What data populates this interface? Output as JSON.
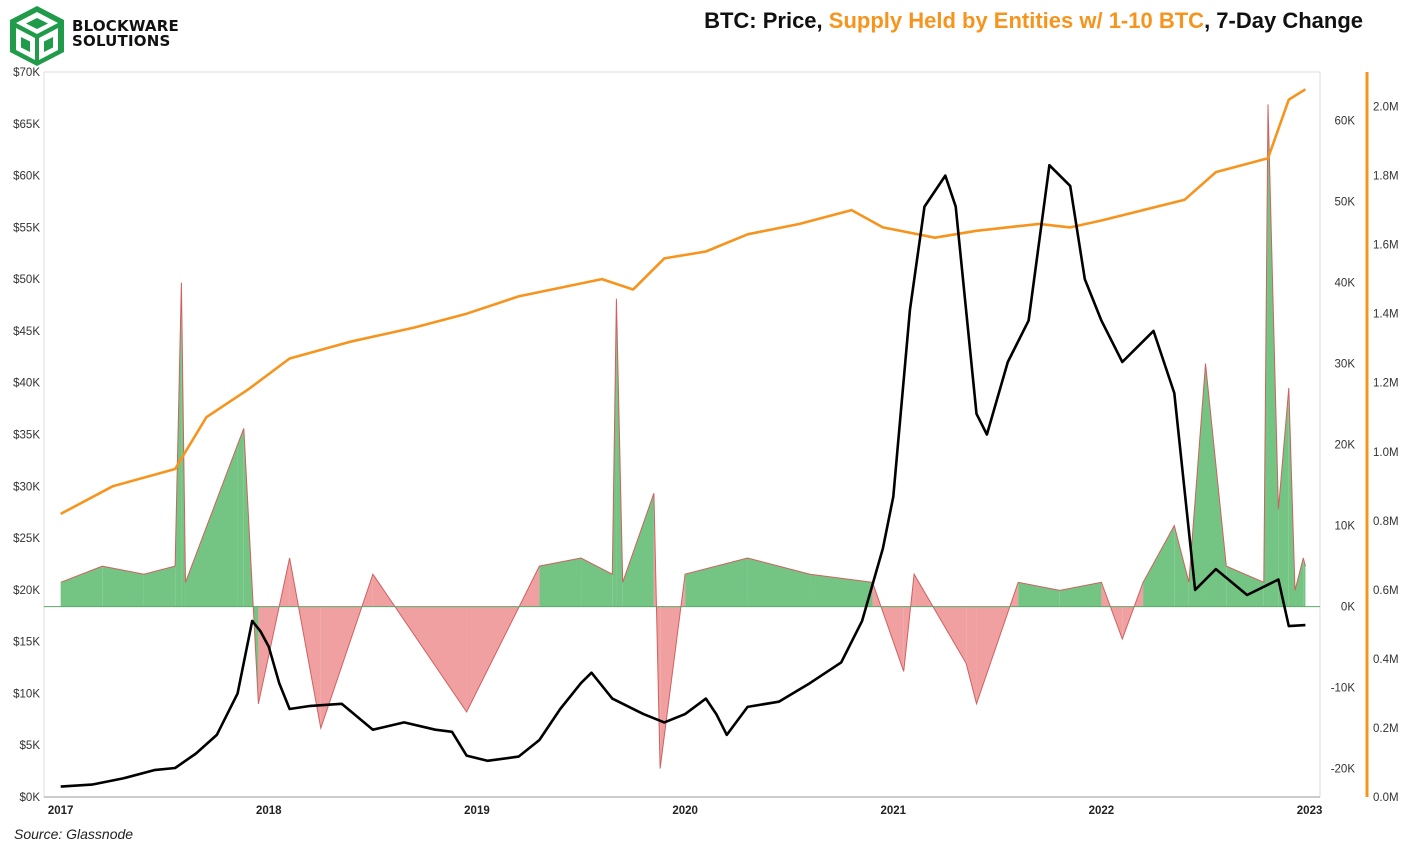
{
  "brand": {
    "line1": "BLOCKWARE",
    "line2": "SOLUTIONS"
  },
  "title": {
    "part1": "BTC: Price, ",
    "part2": "Supply Held by Entities w/ 1-10 BTC",
    "part3": ", 7-Day Change"
  },
  "source": "Source: Glassnode",
  "colors": {
    "price": "#000000",
    "supply": "#f7941d",
    "change_pos_fill": "#74c584",
    "change_neg_fill": "#f0a0a0",
    "change_line": "#d06060"
  },
  "chart_data": {
    "type": "line",
    "x_ticks": [
      "2017",
      "2018",
      "2019",
      "2020",
      "2021",
      "2022",
      "2023"
    ],
    "y_left_ticks": [
      "$0K",
      "$5K",
      "$10K",
      "$15K",
      "$20K",
      "$25K",
      "$30K",
      "$35K",
      "$40K",
      "$45K",
      "$50K",
      "$55K",
      "$60K",
      "$65K",
      "$70K"
    ],
    "y_mid_ticks": [
      "-20K",
      "-10K",
      "0K",
      "10K",
      "20K",
      "30K",
      "40K",
      "50K",
      "60K"
    ],
    "y_right_ticks": [
      "0.0M",
      "0.2M",
      "0.4M",
      "0.6M",
      "0.8M",
      "1.0M",
      "1.2M",
      "1.4M",
      "1.6M",
      "1.8M",
      "2.0M"
    ],
    "y_left_range": [
      0,
      70000
    ],
    "y_mid_range": [
      -23500,
      66000
    ],
    "y_right_range": [
      0,
      2100000
    ],
    "series": [
      {
        "axis": "left",
        "x": [
          2017.0,
          2017.15,
          2017.3,
          2017.45,
          2017.55,
          2017.65,
          2017.75,
          2017.85,
          2017.92,
          2017.96,
          2018.0,
          2018.05,
          2018.1,
          2018.2,
          2018.35,
          2018.5,
          2018.65,
          2018.8,
          2018.88,
          2018.95,
          2019.05,
          2019.2,
          2019.3,
          2019.4,
          2019.5,
          2019.55,
          2019.65,
          2019.8,
          2019.9,
          2020.0,
          2020.1,
          2020.15,
          2020.2,
          2020.3,
          2020.45,
          2020.6,
          2020.75,
          2020.85,
          2020.95,
          2021.0,
          2021.08,
          2021.15,
          2021.25,
          2021.3,
          2021.4,
          2021.45,
          2021.55,
          2021.65,
          2021.75,
          2021.85,
          2021.92,
          2022.0,
          2022.1,
          2022.25,
          2022.35,
          2022.45,
          2022.55,
          2022.7,
          2022.8,
          2022.85,
          2022.9,
          2022.98
        ],
        "y": [
          1000,
          1200,
          1800,
          2600,
          2800,
          4200,
          6000,
          10000,
          17000,
          16000,
          14500,
          11000,
          8500,
          8800,
          9000,
          6500,
          7200,
          6500,
          6300,
          4000,
          3500,
          3900,
          5500,
          8500,
          11000,
          12000,
          9500,
          8000,
          7200,
          8000,
          9500,
          8000,
          6000,
          8700,
          9200,
          11000,
          13000,
          17000,
          24000,
          29000,
          47000,
          57000,
          60000,
          57000,
          37000,
          35000,
          42000,
          46000,
          61000,
          59000,
          50000,
          46000,
          42000,
          45000,
          39000,
          20000,
          22000,
          19500,
          20500,
          21000,
          16500,
          16600
        ]
      },
      {
        "axis": "right",
        "x": [
          2017.0,
          2017.25,
          2017.55,
          2017.7,
          2017.9,
          2018.1,
          2018.4,
          2018.7,
          2018.95,
          2019.2,
          2019.6,
          2019.75,
          2019.9,
          2020.1,
          2020.3,
          2020.55,
          2020.8,
          2020.95,
          2021.2,
          2021.4,
          2021.7,
          2021.85,
          2022.0,
          2022.2,
          2022.4,
          2022.55,
          2022.8,
          2022.9,
          2022.98
        ],
        "y": [
          820000,
          900000,
          950000,
          1100000,
          1180000,
          1270000,
          1320000,
          1360000,
          1400000,
          1450000,
          1500000,
          1470000,
          1560000,
          1580000,
          1630000,
          1660000,
          1700000,
          1650000,
          1620000,
          1640000,
          1660000,
          1650000,
          1670000,
          1700000,
          1730000,
          1810000,
          1850000,
          2020000,
          2050000
        ]
      },
      {
        "axis": "mid",
        "x": [
          2017.0,
          2017.2,
          2017.4,
          2017.55,
          2017.58,
          2017.6,
          2017.85,
          2017.88,
          2017.95,
          2018.1,
          2018.25,
          2018.5,
          2018.95,
          2019.3,
          2019.5,
          2019.65,
          2019.67,
          2019.7,
          2019.85,
          2019.88,
          2020.0,
          2020.3,
          2020.6,
          2020.9,
          2021.05,
          2021.1,
          2021.35,
          2021.4,
          2021.6,
          2021.8,
          2022.0,
          2022.1,
          2022.2,
          2022.35,
          2022.42,
          2022.5,
          2022.6,
          2022.78,
          2022.8,
          2022.85,
          2022.9,
          2022.93,
          2022.97,
          2022.98
        ],
        "y": [
          3000,
          5000,
          4000,
          5000,
          40000,
          3000,
          20000,
          22000,
          -12000,
          6000,
          -15000,
          4000,
          -13000,
          5000,
          6000,
          4000,
          38000,
          3000,
          14000,
          -20000,
          4000,
          6000,
          4000,
          3000,
          -8000,
          4000,
          -7000,
          -12000,
          3000,
          2000,
          3000,
          -4000,
          3000,
          10000,
          3000,
          30000,
          5000,
          3000,
          62000,
          12000,
          27000,
          2000,
          6000,
          5000
        ]
      }
    ]
  }
}
